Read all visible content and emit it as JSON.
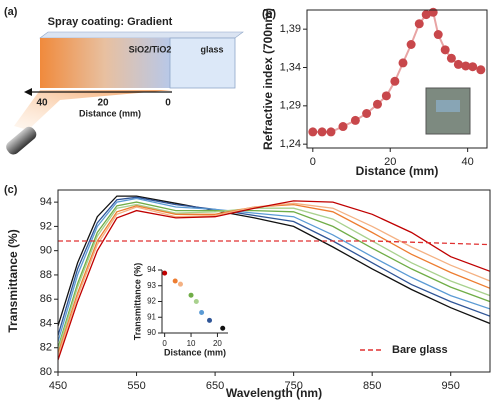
{
  "diagram": {
    "panel_label": "(a)",
    "title": "Spray coating: Gradient",
    "coating_label": "SiO2/TiO2",
    "glass_label": "glass",
    "axis_ticks": [
      "40",
      "20",
      "0"
    ],
    "axis_label": "Distance (mm)"
  },
  "chart_data": [
    {
      "type": "line",
      "panel_label": "(b)",
      "xlabel": "Distance (mm)",
      "ylabel": "Refractive index (700nm)",
      "x": [
        0,
        2.4,
        4.7,
        7.8,
        11,
        13.9,
        16.7,
        19,
        21.2,
        23.3,
        25.4,
        27.5,
        29.3,
        31.1,
        32.4,
        34.2,
        35.8,
        37.6,
        39.5,
        41.3,
        43.4
      ],
      "series": [
        {
          "color": "#c8474b",
          "line_color": "#e8a4a4",
          "values": [
            1.256,
            1.256,
            1.256,
            1.263,
            1.271,
            1.28,
            1.292,
            1.303,
            1.322,
            1.346,
            1.37,
            1.397,
            1.409,
            1.412,
            1.383,
            1.363,
            1.352,
            1.344,
            1.342,
            1.341,
            1.337
          ]
        }
      ],
      "markers": true,
      "xlim": [
        -1.5,
        45
      ],
      "xticks": [
        0,
        20,
        40
      ],
      "ylim": [
        1.235,
        1.415
      ],
      "yticks": [
        {
          "value": 1.24,
          "label": "1,24"
        },
        {
          "value": 1.29,
          "label": "1,29"
        },
        {
          "value": 1.34,
          "label": "1,34"
        },
        {
          "value": 1.39,
          "label": "1,39"
        }
      ]
    },
    {
      "type": "line",
      "panel_label": "(c)",
      "xlabel": "Wavelength (nm)",
      "ylabel": "Transmittance (%)",
      "x": [
        450,
        475,
        500,
        525,
        550,
        600,
        650,
        700,
        750,
        800,
        850,
        900,
        950,
        1000
      ],
      "series": [
        {
          "color": "#111111",
          "values": [
            83.8,
            89,
            92.8,
            94.5,
            94.5,
            93.9,
            93.3,
            92.7,
            92,
            90.3,
            88.5,
            86.8,
            85.3,
            84
          ]
        },
        {
          "color": "#2f5597",
          "values": [
            83,
            88.5,
            92.3,
            94.2,
            94.4,
            93.8,
            93.4,
            92.9,
            92.4,
            90.8,
            89,
            87.2,
            85.8,
            84.6
          ]
        },
        {
          "color": "#5b9bd5",
          "values": [
            82.5,
            88,
            92,
            94,
            94.3,
            93.6,
            93.4,
            93.1,
            92.8,
            91.3,
            89.5,
            87.8,
            86.3,
            85.2
          ]
        },
        {
          "color": "#70ad47",
          "values": [
            82,
            87.3,
            91.5,
            93.7,
            94,
            93.3,
            93.3,
            93.3,
            93.2,
            92,
            90.2,
            88.5,
            87,
            85.8
          ]
        },
        {
          "color": "#a9d18e",
          "values": [
            81.8,
            87,
            91.2,
            93.5,
            93.8,
            93.1,
            93.2,
            93.5,
            93.5,
            92.6,
            90.8,
            89,
            87.5,
            86.3
          ]
        },
        {
          "color": "#ed7d31",
          "values": [
            81.5,
            86.5,
            90.8,
            93.2,
            93.7,
            93,
            93,
            93.6,
            93.8,
            93.2,
            91.5,
            89.7,
            88.2,
            86.9
          ]
        },
        {
          "color": "#f4b183",
          "values": [
            81.3,
            86.2,
            90.5,
            93,
            93.6,
            92.8,
            92.9,
            93.6,
            93.9,
            93.5,
            92,
            90.3,
            88.8,
            87.5
          ]
        },
        {
          "color": "#c00000",
          "values": [
            81,
            85.8,
            90,
            92.7,
            93.3,
            92.7,
            92.8,
            93.5,
            94.1,
            94,
            93,
            91.5,
            89.5,
            88.3
          ]
        },
        {
          "name": "Bare glass",
          "color": "#e03030",
          "dashed": true,
          "values": [
            90.8,
            90.8,
            90.8,
            90.8,
            90.8,
            90.8,
            90.8,
            90.8,
            90.8,
            90.8,
            90.8,
            90.7,
            90.6,
            90.5
          ]
        }
      ],
      "legend": "lower right",
      "xlim": [
        450,
        1000
      ],
      "xticks": [
        450,
        550,
        650,
        750,
        850,
        950
      ],
      "ylim": [
        80,
        95
      ],
      "yticks": [
        80,
        82,
        84,
        86,
        88,
        90,
        92,
        94
      ]
    },
    {
      "type": "scatter",
      "xlabel": "Distance (mm)",
      "ylabel": "Transmittance (%)",
      "x": [
        0,
        4,
        6,
        10,
        12,
        14,
        17,
        22
      ],
      "series": [
        {
          "colors": [
            "#c00000",
            "#ed7d31",
            "#f4b183",
            "#70ad47",
            "#a9d18e",
            "#5b9bd5",
            "#2f5597",
            "#111111"
          ],
          "values": [
            93.8,
            93.3,
            93.1,
            92.4,
            92,
            91.3,
            90.8,
            90.3
          ]
        }
      ],
      "xlim": [
        -1,
        24
      ],
      "xticks": [
        0,
        10,
        20
      ],
      "ylim": [
        90,
        94
      ],
      "yticks": [
        90,
        91,
        92,
        93,
        94
      ]
    }
  ]
}
